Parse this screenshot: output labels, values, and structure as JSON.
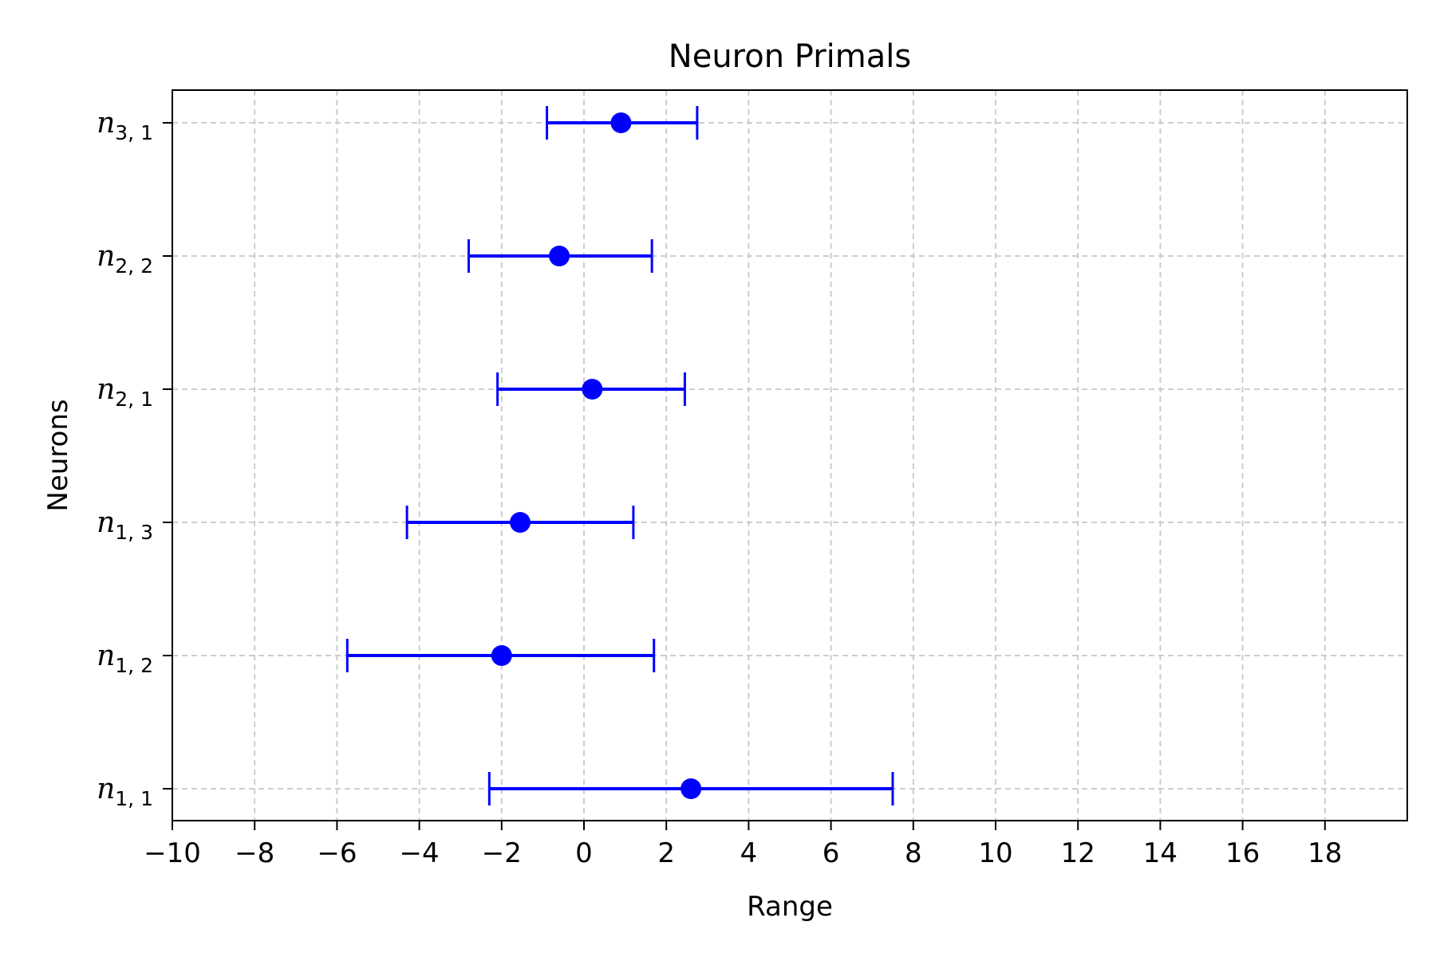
{
  "chart_data": {
    "type": "errorbar",
    "title": "Neuron Primals",
    "xlabel": "Range",
    "ylabel": "Neurons",
    "xlim": [
      -10,
      20
    ],
    "xticks": [
      -10,
      -8,
      -6,
      -4,
      -2,
      0,
      2,
      4,
      6,
      8,
      10,
      12,
      14,
      16,
      18
    ],
    "grid": true,
    "color": "#0000ff",
    "points": [
      {
        "label_base": "n",
        "label_sub": "1, 1",
        "center": 2.6,
        "lower": -2.3,
        "upper": 7.5
      },
      {
        "label_base": "n",
        "label_sub": "1, 2",
        "center": -2.0,
        "lower": -5.75,
        "upper": 1.7
      },
      {
        "label_base": "n",
        "label_sub": "1, 3",
        "center": -1.55,
        "lower": -4.3,
        "upper": 1.2
      },
      {
        "label_base": "n",
        "label_sub": "2, 1",
        "center": 0.2,
        "lower": -2.1,
        "upper": 2.45
      },
      {
        "label_base": "n",
        "label_sub": "2, 2",
        "center": -0.6,
        "lower": -2.8,
        "upper": 1.65
      },
      {
        "label_base": "n",
        "label_sub": "3, 1",
        "center": 0.9,
        "lower": -0.9,
        "upper": 2.75
      }
    ]
  }
}
